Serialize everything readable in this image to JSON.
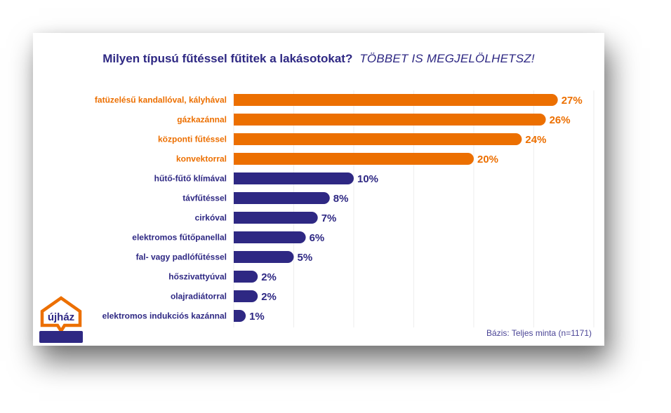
{
  "chart_data": {
    "type": "bar",
    "orientation": "horizontal",
    "title": "Milyen típusú fűtéssel fűtitek a lakásotokat?",
    "subtitle": "TÖBBET IS MEGJELÖLHETSZ!",
    "xlabel": "",
    "ylabel": "",
    "xlim": [
      0,
      30
    ],
    "grid": true,
    "grid_step": 5,
    "value_suffix": "%",
    "categories": [
      "fatüzelésű kandallóval, kályhával",
      "gázkazánnal",
      "központi fűtéssel",
      "konvektorral",
      "hűtő-fűtő klímával",
      "távfűtéssel",
      "cirkóval",
      "elektromos fűtőpanellal",
      "fal- vagy padlófűtéssel",
      "hőszivattyúval",
      "olajradiátorral",
      "elektromos indukciós kazánnal"
    ],
    "values": [
      27,
      26,
      24,
      20,
      10,
      8,
      7,
      6,
      5,
      2,
      2,
      1
    ],
    "value_labels": [
      "27%",
      "26%",
      "24%",
      "20%",
      "10%",
      "8%",
      "7%",
      "6%",
      "5%",
      "2%",
      "2%",
      "1%"
    ],
    "highlight_top_n": 4,
    "colors": {
      "highlight": "#ec6f00",
      "default": "#2e2883",
      "grid": "#eeeeee"
    },
    "footnote": "Bázis: Teljes minta (n=1171)"
  },
  "brand": {
    "logo_text": "újház",
    "colors": {
      "orange": "#ec6f00",
      "navy": "#2e2883"
    }
  }
}
